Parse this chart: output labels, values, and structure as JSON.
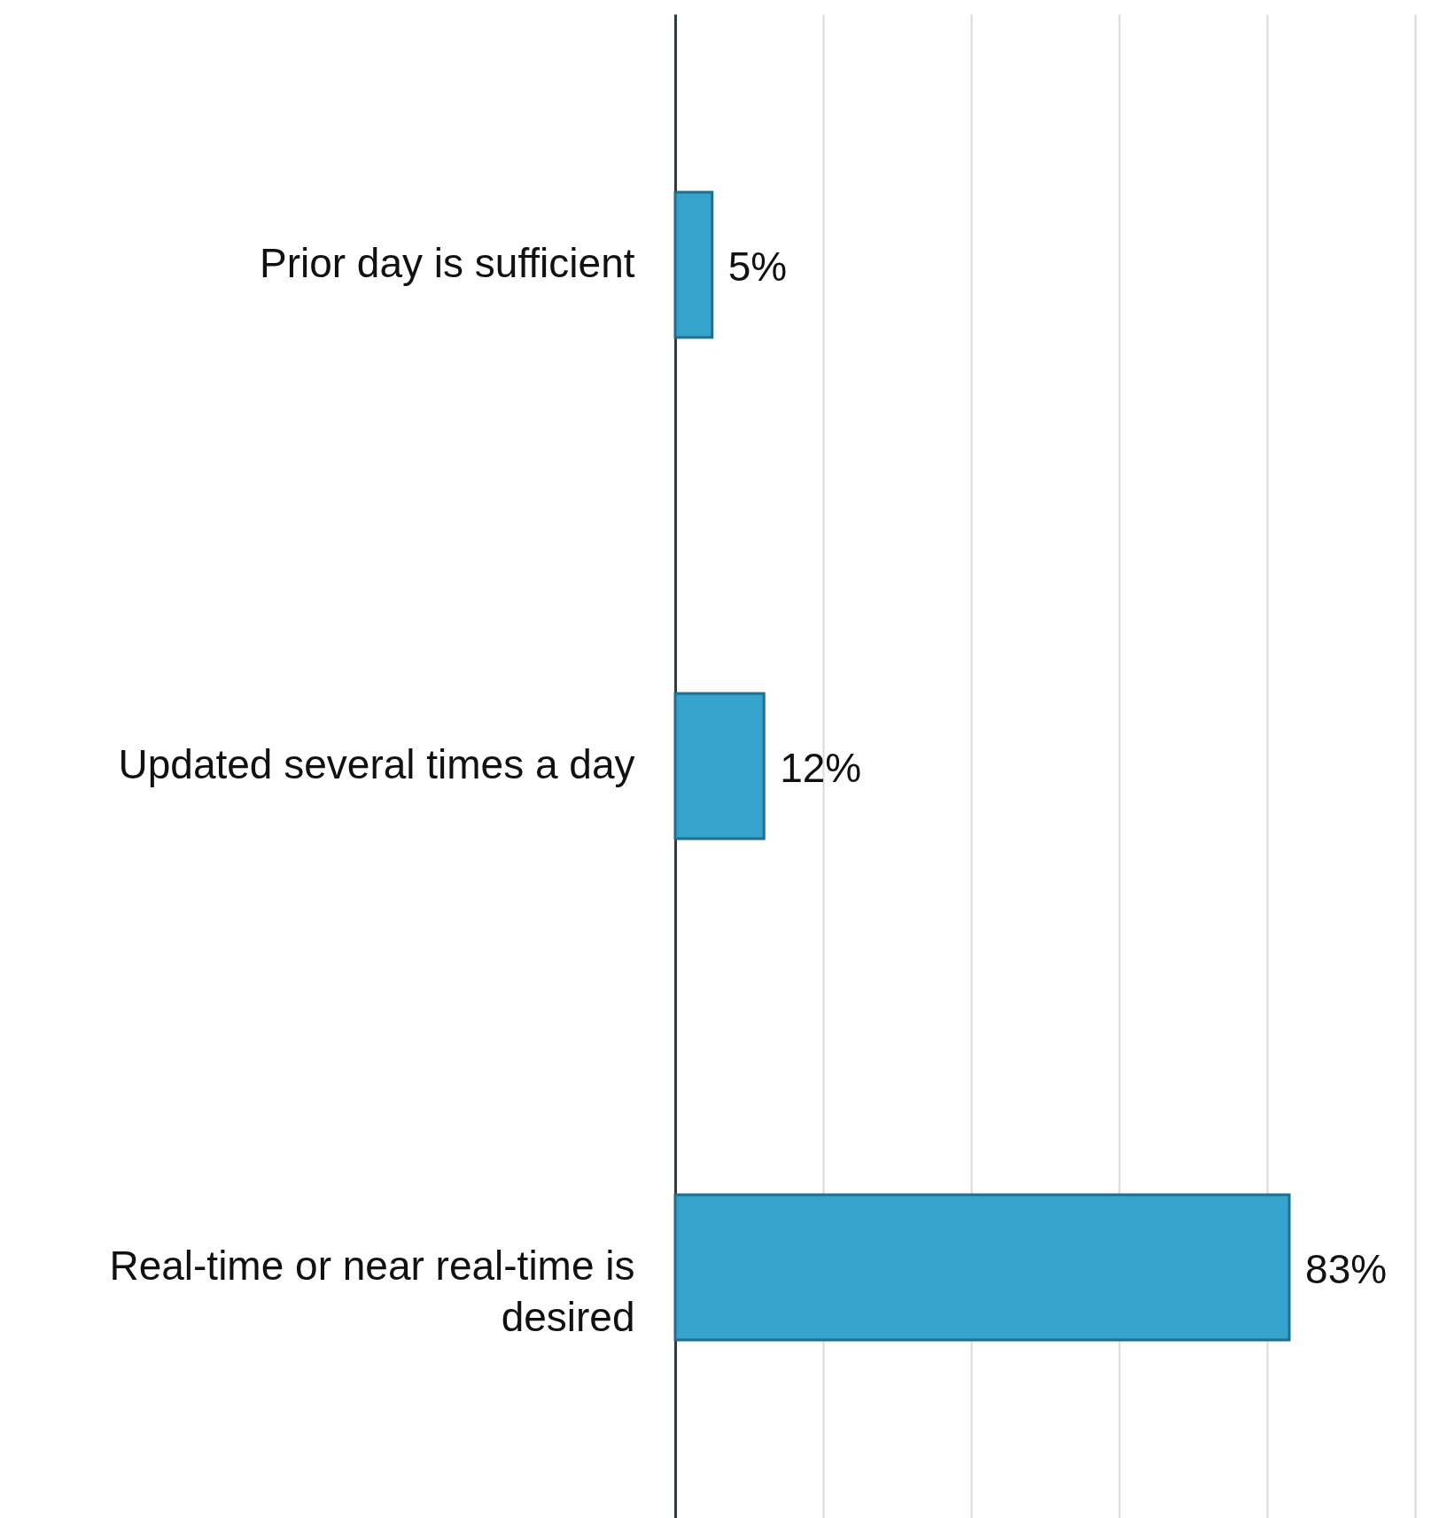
{
  "chart_data": {
    "type": "bar",
    "orientation": "horizontal",
    "relative": false,
    "categories": [
      "Prior day is sufficient",
      "Updated several times a day",
      "Real-time or near real-time is desired"
    ],
    "values": [
      5,
      12,
      83
    ],
    "value_labels": [
      "5%",
      "12%",
      "83%"
    ],
    "color": "#35a3cb",
    "xlim": [
      0,
      100
    ],
    "xticks": [
      {
        "value": 0,
        "label": null
      },
      {
        "value": 20,
        "label": null
      },
      {
        "value": 40,
        "label": null
      },
      {
        "value": 60,
        "label": null
      },
      {
        "value": 80,
        "label": null
      },
      {
        "value": 100,
        "label": null
      }
    ],
    "grid": "x",
    "tick_labels": "y"
  }
}
